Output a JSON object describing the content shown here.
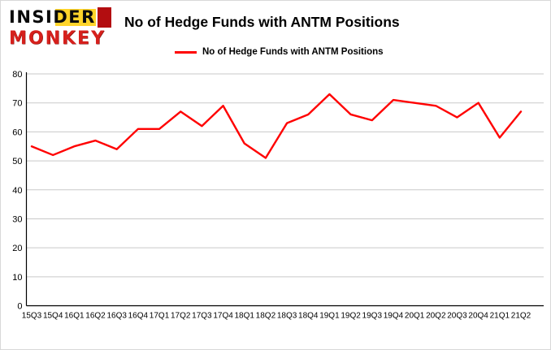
{
  "header": {
    "logo": {
      "line1": "INSIDER",
      "line2": "MONKEY"
    },
    "title": "No of Hedge Funds with ANTM Positions",
    "legend_label": "No of Hedge Funds with ANTM Positions"
  },
  "colors": {
    "line": "#ff0000",
    "grid": "#c9c9c9",
    "axis": "#000000",
    "logo_yellow": "#ffd42a",
    "logo_red_block": "#b30d10",
    "logo_monkey_red": "#d6201c"
  },
  "chart_data": {
    "type": "line",
    "title": "No of Hedge Funds with ANTM Positions",
    "categories": [
      "15Q3",
      "15Q4",
      "16Q1",
      "16Q2",
      "16Q3",
      "16Q4",
      "17Q1",
      "17Q2",
      "17Q3",
      "17Q4",
      "18Q1",
      "18Q2",
      "18Q3",
      "18Q4",
      "19Q1",
      "19Q2",
      "19Q3",
      "19Q4",
      "20Q1",
      "20Q2",
      "20Q3",
      "20Q4",
      "21Q1",
      "21Q2"
    ],
    "series": [
      {
        "name": "No of Hedge Funds with ANTM Positions",
        "color": "#ff0000",
        "values": [
          55,
          52,
          55,
          57,
          54,
          61,
          61,
          67,
          62,
          69,
          56,
          51,
          63,
          66,
          73,
          66,
          64,
          71,
          70,
          69,
          65,
          70,
          58,
          67
        ]
      }
    ],
    "xlabel": "",
    "ylabel": "",
    "ylim": [
      0,
      80
    ],
    "yticks": [
      0,
      10,
      20,
      30,
      40,
      50,
      60,
      70,
      80
    ],
    "grid": true,
    "legend_position": "top"
  }
}
